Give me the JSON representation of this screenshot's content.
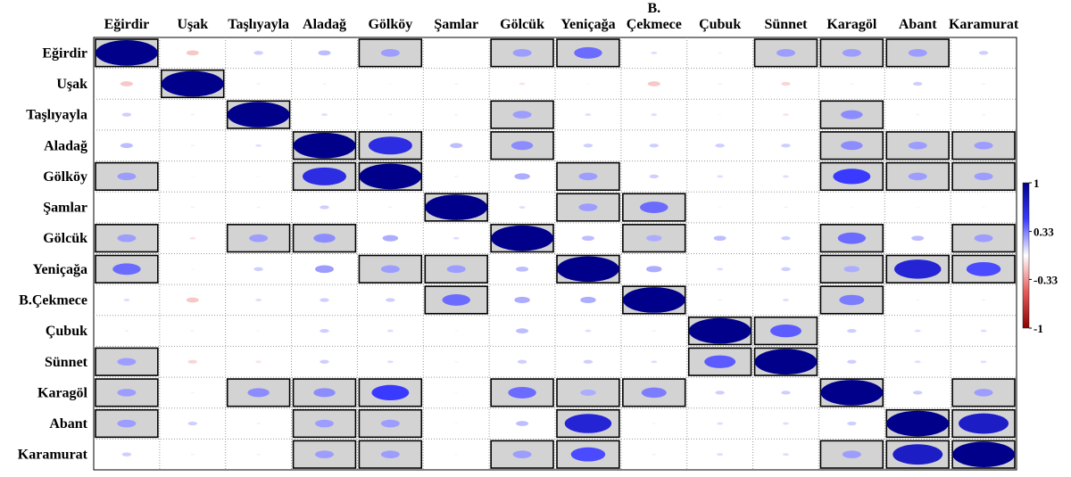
{
  "chart_data": {
    "type": "heatmap",
    "title": "",
    "column_labels": [
      "Eğirdir",
      "Uşak",
      "Taşlıyayla",
      "Aladağ",
      "Gölköy",
      "Şamlar",
      "Gölcük",
      "Yeniçağa",
      "B. Çekmece",
      "Çubuk",
      "Sünnet",
      "Karagöl",
      "Abant",
      "Karamurat"
    ],
    "column_label_lines": [
      [
        "Eğirdir"
      ],
      [
        "Uşak"
      ],
      [
        "Taşlıyayla"
      ],
      [
        "Aladağ"
      ],
      [
        "Gölköy"
      ],
      [
        "Şamlar"
      ],
      [
        "Gölcük"
      ],
      [
        "Yeniçağa"
      ],
      [
        "B.",
        "Çekmece"
      ],
      [
        "Çubuk"
      ],
      [
        "Sünnet"
      ],
      [
        "Karagöl"
      ],
      [
        "Abant"
      ],
      [
        "Karamurat"
      ]
    ],
    "row_labels": [
      "Eğirdir",
      "Uşak",
      "Taşlıyayla",
      "Aladağ",
      "Gölköy",
      "Şamlar",
      "Gölcük",
      "Yeniçağa",
      "B.Çekmece",
      "Çubuk",
      "Sünnet",
      "Karagöl",
      "Abant",
      "Karamurat"
    ],
    "values": [
      [
        1,
        -0.2,
        0.15,
        0.2,
        0.3,
        0,
        0.3,
        0.45,
        0.1,
        0.05,
        0.3,
        0.3,
        0.3,
        0.15
      ],
      [
        -0.2,
        1,
        0.05,
        0.05,
        0.02,
        0.05,
        -0.1,
        0.02,
        -0.2,
        0.05,
        -0.15,
        -0.05,
        0.15,
        0.05
      ],
      [
        0.15,
        0.05,
        1,
        0.1,
        0.05,
        0.05,
        0.3,
        0.1,
        0.1,
        0.02,
        -0.1,
        0.35,
        0.05,
        0.05
      ],
      [
        0.2,
        0.05,
        0.1,
        1,
        0.7,
        0.2,
        0.35,
        0.15,
        0.15,
        0.15,
        0.15,
        0.35,
        0.3,
        0.3
      ],
      [
        0.3,
        0.02,
        0.02,
        0.7,
        1,
        0.05,
        0.25,
        0.3,
        0.15,
        0.1,
        0.1,
        0.6,
        0.3,
        0.3
      ],
      [
        0,
        0.05,
        0.05,
        0.15,
        0.05,
        1,
        0.1,
        0.3,
        0.45,
        0.02,
        0.05,
        0.02,
        0.02,
        0.02
      ],
      [
        0.3,
        -0.1,
        0.3,
        0.35,
        0.25,
        0.1,
        1,
        0.2,
        0.25,
        0.2,
        0.15,
        0.45,
        0.2,
        0.3
      ],
      [
        0.45,
        0.02,
        0.15,
        0.3,
        0.3,
        0.3,
        0.2,
        1,
        0.25,
        0.1,
        0.15,
        0.25,
        0.75,
        0.55
      ],
      [
        0.1,
        -0.2,
        0.1,
        0.15,
        0.15,
        0.45,
        0.25,
        0.25,
        1,
        0.05,
        0.1,
        0.4,
        -0.05,
        0.05
      ],
      [
        0.05,
        0.05,
        0.02,
        0.15,
        0.1,
        0.02,
        0.2,
        0.1,
        0.05,
        1,
        0.5,
        0.15,
        0.1,
        0.1
      ],
      [
        0.3,
        -0.15,
        -0.1,
        0.15,
        0.1,
        -0.05,
        0.15,
        0.15,
        0.1,
        0.5,
        1,
        0.15,
        0.1,
        0.1
      ],
      [
        0.3,
        -0.05,
        0.35,
        0.35,
        0.6,
        0.02,
        0.45,
        0.25,
        0.4,
        0.15,
        0.15,
        1,
        0.15,
        0.3
      ],
      [
        0.3,
        0.15,
        0.05,
        0.3,
        0.3,
        0.02,
        0.2,
        0.75,
        -0.05,
        0.1,
        0.1,
        0.15,
        1,
        0.8
      ],
      [
        0.15,
        0.05,
        0.05,
        0.3,
        0.3,
        0.02,
        0.3,
        0.55,
        0.05,
        0.1,
        0.1,
        0.3,
        0.8,
        1
      ]
    ],
    "highlighted_cells": [
      [
        0,
        0
      ],
      [
        0,
        4
      ],
      [
        0,
        6
      ],
      [
        0,
        7
      ],
      [
        0,
        10
      ],
      [
        0,
        11
      ],
      [
        0,
        12
      ],
      [
        1,
        1
      ],
      [
        2,
        2
      ],
      [
        2,
        6
      ],
      [
        2,
        11
      ],
      [
        3,
        3
      ],
      [
        3,
        4
      ],
      [
        3,
        6
      ],
      [
        3,
        11
      ],
      [
        3,
        12
      ],
      [
        3,
        13
      ],
      [
        4,
        0
      ],
      [
        4,
        3
      ],
      [
        4,
        4
      ],
      [
        4,
        7
      ],
      [
        4,
        11
      ],
      [
        4,
        12
      ],
      [
        4,
        13
      ],
      [
        5,
        5
      ],
      [
        5,
        7
      ],
      [
        5,
        8
      ],
      [
        6,
        0
      ],
      [
        6,
        2
      ],
      [
        6,
        3
      ],
      [
        6,
        6
      ],
      [
        6,
        8
      ],
      [
        6,
        11
      ],
      [
        6,
        13
      ],
      [
        7,
        0
      ],
      [
        7,
        4
      ],
      [
        7,
        5
      ],
      [
        7,
        7
      ],
      [
        7,
        11
      ],
      [
        7,
        12
      ],
      [
        7,
        13
      ],
      [
        8,
        5
      ],
      [
        8,
        8
      ],
      [
        8,
        11
      ],
      [
        9,
        9
      ],
      [
        9,
        10
      ],
      [
        10,
        0
      ],
      [
        10,
        9
      ],
      [
        10,
        10
      ],
      [
        11,
        0
      ],
      [
        11,
        2
      ],
      [
        11,
        3
      ],
      [
        11,
        4
      ],
      [
        11,
        6
      ],
      [
        11,
        7
      ],
      [
        11,
        8
      ],
      [
        11,
        11
      ],
      [
        11,
        13
      ],
      [
        12,
        0
      ],
      [
        12,
        3
      ],
      [
        12,
        4
      ],
      [
        12,
        7
      ],
      [
        12,
        12
      ],
      [
        12,
        13
      ],
      [
        13,
        3
      ],
      [
        13,
        4
      ],
      [
        13,
        6
      ],
      [
        13,
        7
      ],
      [
        13,
        11
      ],
      [
        13,
        12
      ],
      [
        13,
        13
      ]
    ],
    "color_scale": {
      "min": -1,
      "max": 1,
      "ticks": [
        1,
        0.33,
        -0.33,
        -1
      ],
      "tick_labels": [
        "1",
        "0.33",
        "-0.33",
        "-1"
      ],
      "colors": {
        "negative_end": "#8b0000",
        "negative_mid": "#e65a5a",
        "zero": "#ffffff",
        "positive_mid": "#3a3aff",
        "positive_end": "#00008b"
      }
    },
    "grid": true,
    "highlight_fill": "#d3d3d3",
    "legend": "right"
  }
}
